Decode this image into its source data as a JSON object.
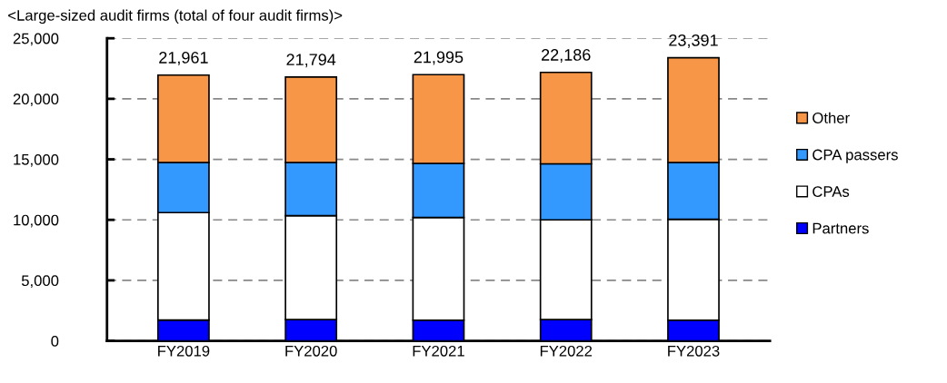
{
  "chart_data": {
    "type": "bar",
    "title": "<Large-sized audit firms (total of four audit firms)>",
    "categories": [
      "FY2019",
      "FY2020",
      "FY2021",
      "FY2022",
      "FY2023"
    ],
    "stacked": true,
    "series": [
      {
        "name": "Partners",
        "color": "#0000ff",
        "values": [
          1720,
          1760,
          1710,
          1760,
          1710
        ]
      },
      {
        "name": "CPAs",
        "color": "#ffffff",
        "values": [
          8880,
          8590,
          8490,
          8240,
          8340
        ]
      },
      {
        "name": "CPA passers",
        "color": "#3399ff",
        "values": [
          4130,
          4380,
          4460,
          4630,
          4680
        ]
      },
      {
        "name": "Other",
        "color": "#f79646",
        "values": [
          7231,
          7064,
          7335,
          7556,
          8661
        ]
      }
    ],
    "totals": [
      "21,961",
      "21,794",
      "21,995",
      "22,186",
      "23,391"
    ],
    "ylim": [
      0,
      25000
    ],
    "yticks": [
      {
        "value": 0,
        "label": "0"
      },
      {
        "value": 5000,
        "label": "5,000"
      },
      {
        "value": 10000,
        "label": "10,000"
      },
      {
        "value": 15000,
        "label": "15,000"
      },
      {
        "value": 20000,
        "label": "20,000"
      },
      {
        "value": 25000,
        "label": "25,000"
      }
    ],
    "grid": "y",
    "legend": "right"
  }
}
